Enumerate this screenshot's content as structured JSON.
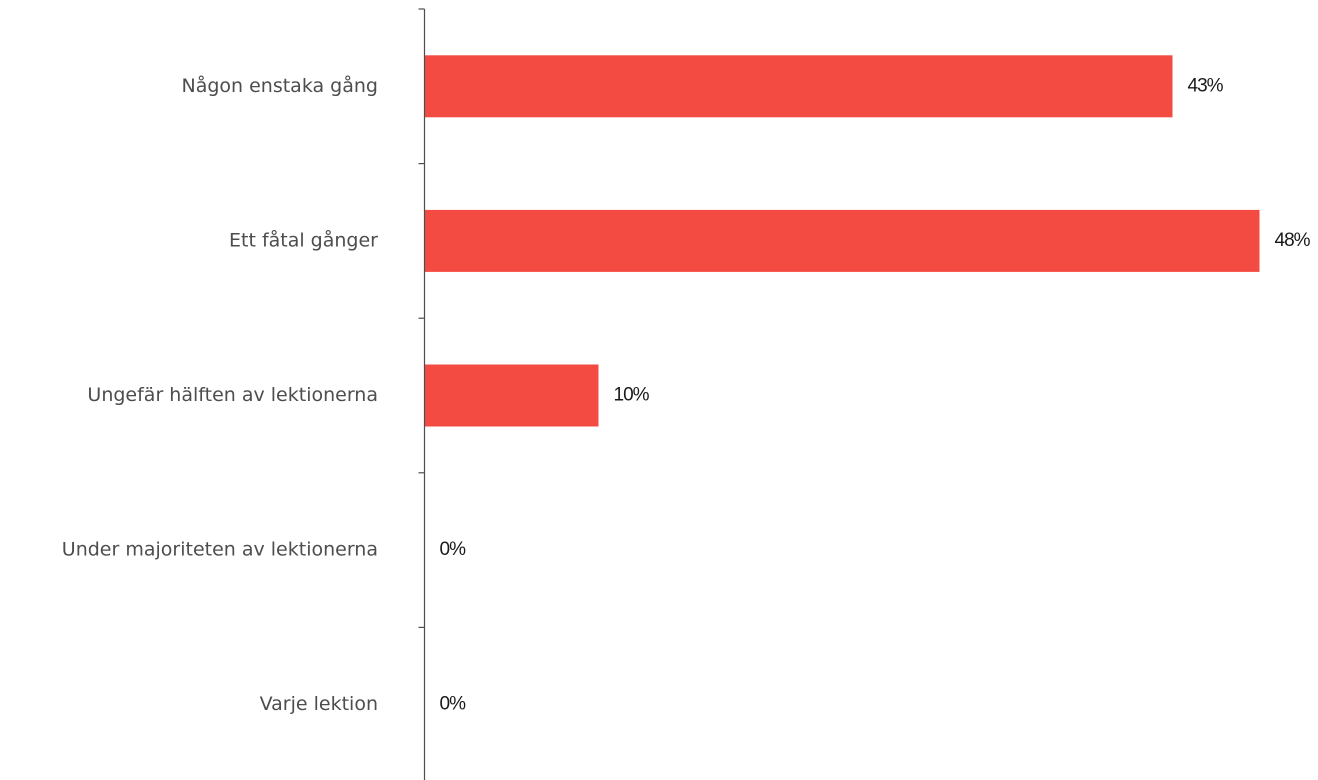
{
  "chart_data": {
    "type": "bar",
    "orientation": "horizontal",
    "categories": [
      "Någon enstaka gång",
      "Ett fåtal gånger",
      "Ungefär hälften av lektionerna",
      "Under majoriteten av lektionerna",
      "Varje lektion"
    ],
    "values": [
      43,
      48,
      10,
      0,
      0
    ],
    "value_labels": [
      "43%",
      "48%",
      "10%",
      "0%",
      "0%"
    ],
    "unit": "%",
    "xlim": [
      0,
      48
    ],
    "title": "",
    "xlabel": "",
    "ylabel": "",
    "grid": false,
    "bar_color": "#f34b41"
  }
}
